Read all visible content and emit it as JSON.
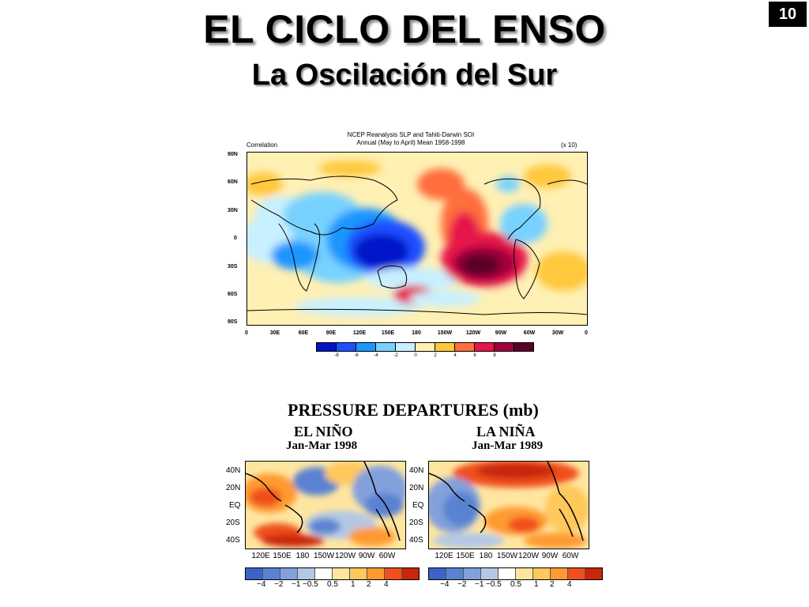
{
  "slide": {
    "page_number": "10",
    "title": "EL CICLO DEL ENSO",
    "subtitle": "La Oscilación del Sur"
  },
  "top_map": {
    "title_line1": "NCEP Reanalysis SLP and Tahiti-Darwin SOI",
    "title_line2": "Annual (May to April) Mean 1958-1998",
    "left_note": "Correlation",
    "right_note": "(x 10)",
    "y_ticks": [
      "90N",
      "60N",
      "30N",
      "0",
      "30S",
      "60S",
      "90S"
    ],
    "x_ticks": [
      "0",
      "30E",
      "60E",
      "90E",
      "120E",
      "150E",
      "180",
      "150W",
      "120W",
      "90W",
      "60W",
      "30W",
      "0"
    ],
    "colorbar_colors": [
      "#0014c8",
      "#1e50ff",
      "#1e96ff",
      "#78d2ff",
      "#c8f0ff",
      "#fff0b4",
      "#ffc83c",
      "#ff6e3c",
      "#e6144b",
      "#a0003c",
      "#5a0028"
    ],
    "colorbar_labels": [
      "-8",
      "-6",
      "-4",
      "-2",
      "0",
      "2",
      "4",
      "6",
      "8"
    ]
  },
  "pressure": {
    "title": "PRESSURE DEPARTURES (mb)",
    "left": {
      "label": "EL NIÑO",
      "date": "Jan-Mar 1998"
    },
    "right": {
      "label": "LA NIÑA",
      "date": "Jan-Mar 1989"
    },
    "y_ticks": [
      "40N",
      "20N",
      "EQ",
      "20S",
      "40S"
    ],
    "x_ticks": [
      "120E",
      "150E",
      "180",
      "150W",
      "120W",
      "90W",
      "60W"
    ],
    "colorbar_colors": [
      "#3c64c8",
      "#5a82d2",
      "#82a0dc",
      "#b4c8e6",
      "#ffffff",
      "#ffe6a0",
      "#ffc85a",
      "#ff9a32",
      "#f0501e",
      "#c8280a"
    ],
    "colorbar_labels": [
      "−4",
      "−2",
      "−1",
      "−0.5",
      "0.5",
      "1",
      "2",
      "4"
    ]
  }
}
